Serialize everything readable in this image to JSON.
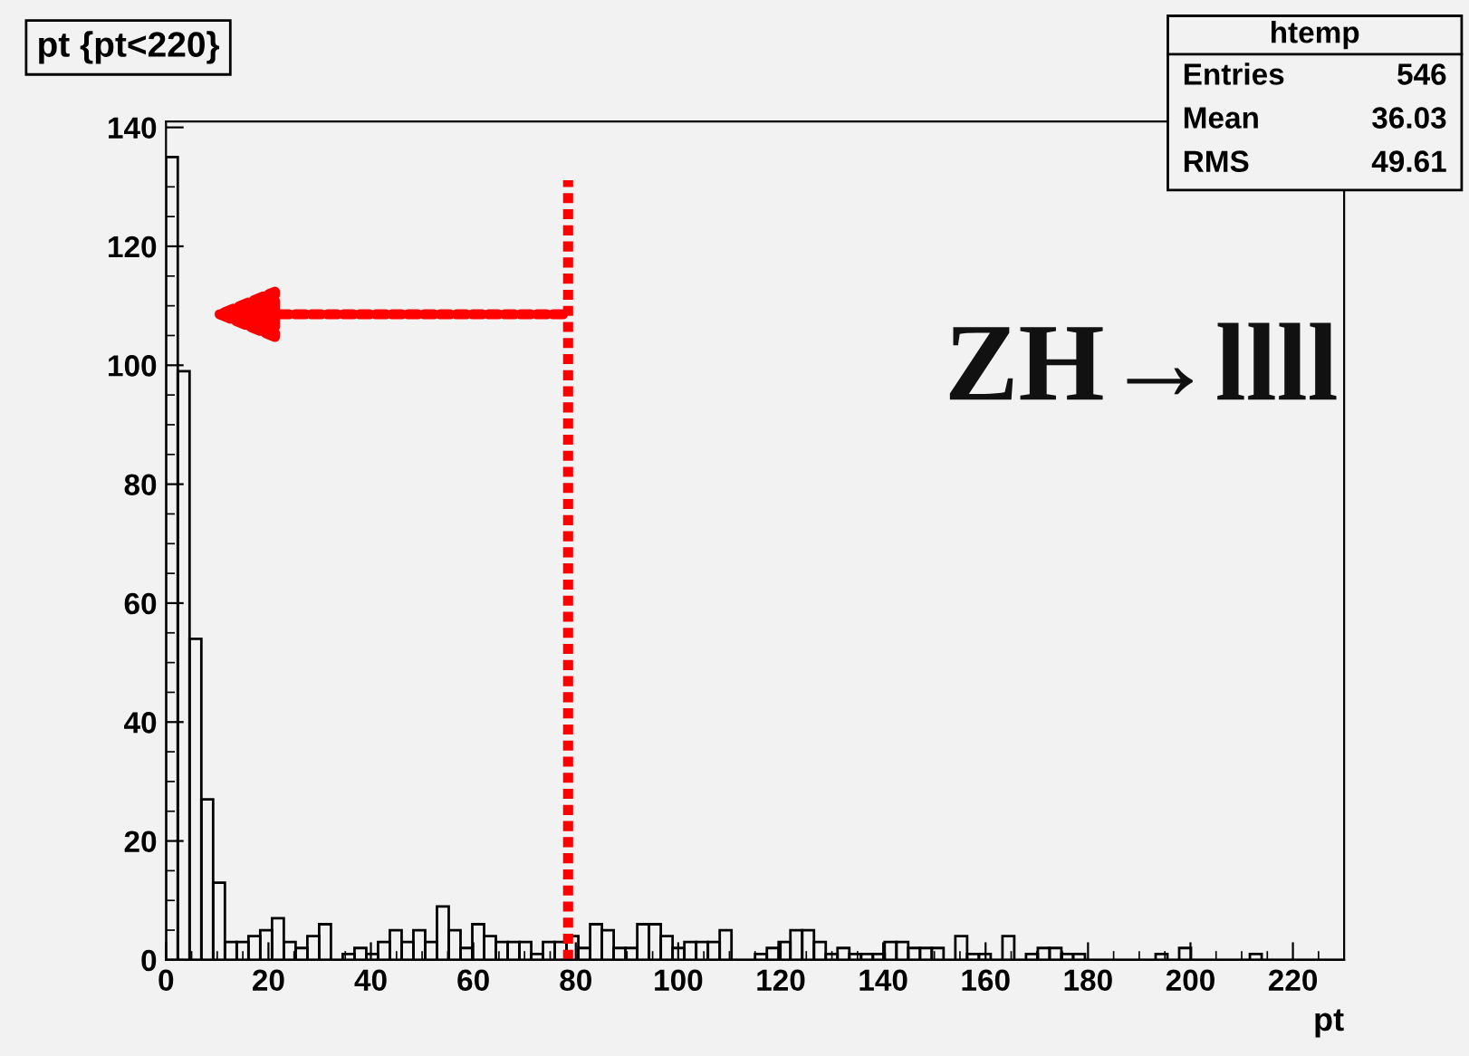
{
  "chart_data": {
    "type": "histogram",
    "title": "pt {pt<220}",
    "xlabel": "pt",
    "bins": [
      0,
      2.3,
      4.6,
      6.9,
      9.2,
      11.5,
      13.8,
      16.1,
      18.4,
      20.7,
      23,
      25.3,
      27.6,
      29.9,
      32.2,
      34.5,
      36.8,
      39.1,
      41.4,
      43.7,
      46,
      48.3,
      50.6,
      52.9,
      55.2,
      57.5,
      59.8,
      62.1,
      64.4,
      66.7,
      69,
      71.3,
      73.6,
      75.9,
      78.2,
      80.5,
      82.8,
      85.1,
      87.4,
      89.7,
      92,
      94.3,
      96.6,
      98.9,
      101.2,
      103.5,
      105.8,
      108.1,
      110.4,
      112.7,
      115,
      117.3,
      119.6,
      121.9,
      124.2,
      126.5,
      128.8,
      131.1,
      133.4,
      135.7,
      138,
      140.3,
      142.6,
      144.9,
      147.2,
      149.5,
      151.8,
      154.1,
      156.4,
      158.7,
      161,
      163.3,
      165.6,
      167.9,
      170.2,
      172.5,
      174.8,
      177.1,
      179.4,
      181.7,
      184,
      186.3,
      188.6,
      190.9,
      193.2,
      195.5,
      197.8,
      200.1,
      202.4,
      204.7,
      207,
      209.3,
      211.6,
      213.9,
      216.2,
      218.5,
      220.8,
      223.1,
      225.4,
      227.7,
      230
    ],
    "values": [
      135,
      99,
      54,
      27,
      13,
      3,
      3,
      4,
      5,
      7,
      3,
      2,
      4,
      6,
      0,
      1,
      2,
      1,
      3,
      5,
      3,
      5,
      3,
      9,
      5,
      2,
      6,
      4,
      3,
      3,
      3,
      1,
      3,
      3,
      4,
      2,
      6,
      5,
      2,
      2,
      6,
      6,
      4,
      2,
      3,
      3,
      3,
      5,
      0,
      0,
      1,
      2,
      3,
      5,
      5,
      3,
      1,
      2,
      1,
      1,
      1,
      3,
      3,
      2,
      2,
      2,
      0,
      4,
      1,
      1,
      0,
      4,
      0,
      1,
      2,
      2,
      1,
      1,
      0,
      0,
      0,
      0,
      0,
      0,
      1,
      0,
      2,
      0,
      0,
      0,
      0,
      0,
      1,
      0,
      0,
      0,
      0,
      0,
      0,
      0
    ],
    "color": "#000000",
    "xlim": [
      0,
      230
    ],
    "xticks": [
      0,
      20,
      40,
      60,
      80,
      100,
      120,
      140,
      160,
      180,
      200,
      220
    ],
    "ylim": [
      0,
      141
    ],
    "yticks": [
      0,
      20,
      40,
      60,
      80,
      100,
      120,
      140
    ],
    "grid": false,
    "ref_lines": [
      {
        "axis": "x",
        "value": 78.5,
        "color": "#ff0000",
        "line_style": "dotted"
      }
    ],
    "annotations": [
      "htemp",
      "Entries",
      "546",
      "Mean",
      "36.03",
      "RMS",
      "49.61",
      "ZH→llll"
    ]
  }
}
